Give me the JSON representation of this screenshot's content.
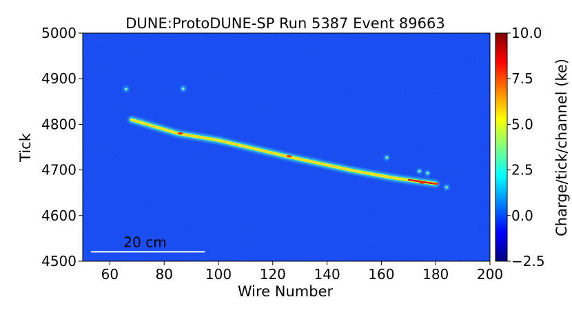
{
  "chart_data": {
    "type": "heatmap",
    "title": "DUNE:ProtoDUNE-SP Run 5387 Event 89663",
    "xlabel": "Wire Number",
    "ylabel": "Tick",
    "xlim": [
      50,
      200
    ],
    "ylim": [
      4500,
      5000
    ],
    "xticks": [
      60,
      80,
      100,
      120,
      140,
      160,
      180,
      200
    ],
    "yticks": [
      4500,
      4600,
      4700,
      4800,
      4900,
      5000
    ],
    "colorbar": {
      "label": "Charge/tick/channel (ke)",
      "range": [
        -2.5,
        10.0
      ],
      "ticks": [
        "10.0",
        "7.5",
        "5.0",
        "2.5",
        "0.0",
        "−2.5"
      ],
      "tick_values": [
        10.0,
        7.5,
        5.0,
        2.5,
        0.0,
        -2.5
      ],
      "colormap": "jet"
    },
    "background_value": 0.0,
    "track": {
      "points": [
        {
          "wire": 68,
          "tick": 4810
        },
        {
          "wire": 85,
          "tick": 4780
        },
        {
          "wire": 100,
          "tick": 4765
        },
        {
          "wire": 125,
          "tick": 4730
        },
        {
          "wire": 150,
          "tick": 4698
        },
        {
          "wire": 165,
          "tick": 4682
        },
        {
          "wire": 180,
          "tick": 4670
        }
      ],
      "hotspots": [
        {
          "wire": 86,
          "tick": 4780
        },
        {
          "wire": 126,
          "tick": 4730
        },
        {
          "wire": 175,
          "tick": 4672
        },
        {
          "wire": 180,
          "tick": 4670
        }
      ]
    },
    "blobs": [
      {
        "wire": 66,
        "tick": 4877
      },
      {
        "wire": 87,
        "tick": 4878
      },
      {
        "wire": 162,
        "tick": 4727
      },
      {
        "wire": 174,
        "tick": 4697
      },
      {
        "wire": 177,
        "tick": 4693
      },
      {
        "wire": 184,
        "tick": 4662
      }
    ],
    "scale_bar": {
      "label": "20 cm",
      "wire_start": 53,
      "wire_end": 95,
      "tick": 4510
    }
  },
  "colors": {
    "background": "#1446f0",
    "scale_bar": "#ffffff"
  }
}
